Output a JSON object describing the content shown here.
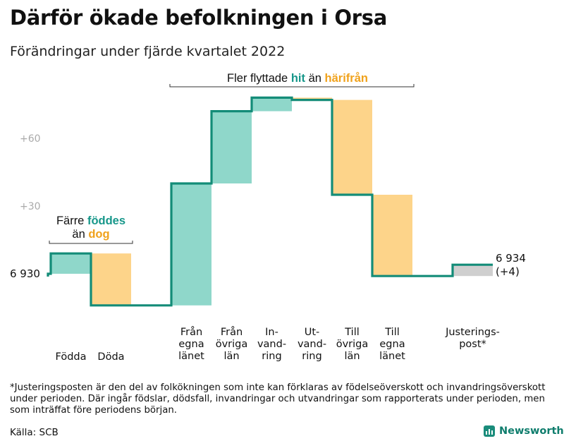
{
  "title": "Därför ökade befolkningen i Orsa",
  "subtitle": "Förändringar under fjärde kvartalet 2022",
  "footnote": "*Justeringsposten är den del av folkökningen som inte kan förklaras av födelseöverskott och invandringsöverskott under perioden. Där ingår födslar, dödsfall, invandringar och utvandringar som rapporterats under perioden, men som inträffat före periodens början.",
  "source": "Källa: SCB",
  "brand": "Newsworthy",
  "colors": {
    "inflow": "#8fd7ca",
    "outflow": "#fdd48a",
    "adjustment": "#cfcfcf",
    "line": "#138c78",
    "teal_text": "#17978a",
    "orange_text": "#f0a21c",
    "gridlabel": "#aaaaaa"
  },
  "chart_data": {
    "type": "waterfall",
    "start_value": 6930,
    "start_label": "6 930",
    "end_label": "6 934",
    "end_change_label": "(+4)",
    "y_ticks": [
      {
        "value": 60,
        "label": "+60"
      },
      {
        "value": 30,
        "label": "+30"
      }
    ],
    "ylim": [
      -20,
      85
    ],
    "steps": [
      {
        "id": "fodda",
        "label_lines": [
          "Födda"
        ],
        "change": 9,
        "kind": "inflow"
      },
      {
        "id": "doda",
        "label_lines": [
          "Döda"
        ],
        "change": -23,
        "kind": "outflow"
      },
      {
        "id": "gap",
        "label_lines": [],
        "change": 0,
        "kind": "gap"
      },
      {
        "id": "fran-egna-lanet",
        "label_lines": [
          "Från",
          "egna",
          "länet"
        ],
        "change": 54,
        "kind": "inflow"
      },
      {
        "id": "fran-ovriga-lan",
        "label_lines": [
          "Från",
          "övriga",
          "län"
        ],
        "change": 32,
        "kind": "inflow"
      },
      {
        "id": "invandring",
        "label_lines": [
          "In-",
          "vand-",
          "ring"
        ],
        "change": 6,
        "kind": "inflow"
      },
      {
        "id": "utvandring",
        "label_lines": [
          "Ut-",
          "vand-",
          "ring"
        ],
        "change": -1,
        "kind": "outflow"
      },
      {
        "id": "till-ovriga-lan",
        "label_lines": [
          "Till",
          "övriga",
          "län"
        ],
        "change": -42,
        "kind": "outflow"
      },
      {
        "id": "till-egna-lanet",
        "label_lines": [
          "Till",
          "egna",
          "länet"
        ],
        "change": -36,
        "kind": "outflow"
      },
      {
        "id": "gap2",
        "label_lines": [],
        "change": 0,
        "kind": "gap"
      },
      {
        "id": "justeringspost",
        "label_lines": [
          "Justerings-",
          "post*"
        ],
        "change": 5,
        "kind": "adjustment"
      }
    ],
    "annotations": [
      {
        "id": "annotation-births",
        "parts": [
          {
            "text": "Färre ",
            "style": "plain"
          },
          {
            "text": "föddes",
            "style": "teal"
          }
        ],
        "parts2": [
          {
            "text": "än ",
            "style": "plain"
          },
          {
            "text": "dog",
            "style": "orange"
          }
        ]
      },
      {
        "id": "annotation-migration",
        "parts": [
          {
            "text": "Fler flyttade ",
            "style": "plain"
          },
          {
            "text": "hit",
            "style": "teal"
          },
          {
            "text": " än ",
            "style": "plain"
          },
          {
            "text": "härifrån",
            "style": "orange"
          }
        ]
      }
    ]
  }
}
